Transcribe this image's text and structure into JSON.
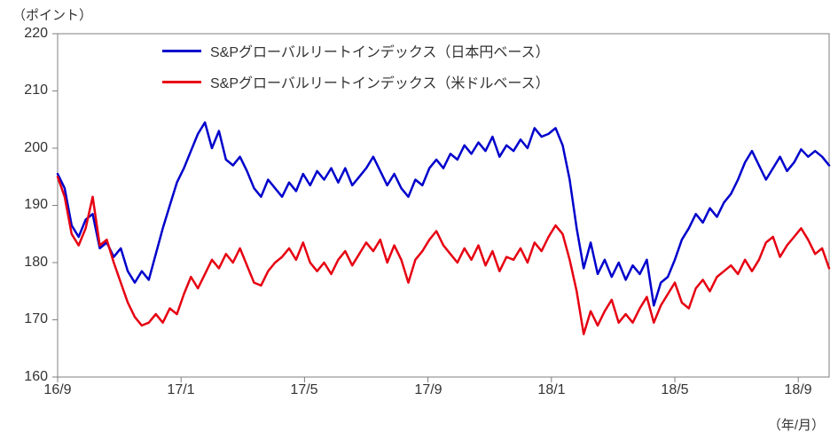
{
  "legend": [
    {
      "label": "S&Pグローバルリートインデックス（日本円ベース）",
      "color": "#0000cc"
    },
    {
      "label": "S&Pグローバルリートインデックス（米ドルベース）",
      "color": "#e60012"
    }
  ],
  "chart_data": {
    "type": "line",
    "title": "",
    "ylabel": "（ポイント）",
    "xlabel": "（年/月）",
    "ylim": [
      160,
      220
    ],
    "y_ticks": [
      220,
      210,
      200,
      190,
      180,
      170,
      160
    ],
    "x_ticks": [
      {
        "label": "16/9",
        "month": 0
      },
      {
        "label": "17/1",
        "month": 4
      },
      {
        "label": "17/5",
        "month": 8
      },
      {
        "label": "17/9",
        "month": 12
      },
      {
        "label": "18/1",
        "month": 16
      },
      {
        "label": "18/5",
        "month": 20
      },
      {
        "label": "18/9",
        "month": 24
      }
    ],
    "x_domain_months": [
      0,
      25
    ],
    "grid": false,
    "legend_position": "top-inside",
    "series": [
      {
        "name": "S&Pグローバルリートインデックス（日本円ベース）",
        "color": "#0000cc",
        "values": [
          195.5,
          193,
          186.5,
          184.5,
          187.5,
          188.5,
          182.5,
          183.5,
          181,
          182.5,
          178.5,
          176.5,
          178.5,
          177,
          181.5,
          186,
          190,
          194,
          196.5,
          199.5,
          202.5,
          204.5,
          200,
          203,
          198,
          197,
          198.5,
          196,
          193,
          191.5,
          194.5,
          193,
          191.5,
          194,
          192.5,
          195.5,
          193.5,
          196,
          194.5,
          196.5,
          194,
          196.5,
          193.5,
          195,
          196.5,
          198.5,
          196,
          193.5,
          195.5,
          193,
          191.5,
          194.5,
          193.5,
          196.5,
          198,
          196.5,
          199,
          198,
          200.5,
          199,
          201,
          199.5,
          202,
          198.5,
          200.5,
          199.5,
          201.5,
          200,
          203.5,
          202,
          202.5,
          203.5,
          200.5,
          194.5,
          186,
          179,
          183.5,
          178,
          180.5,
          177.5,
          180,
          177,
          179.5,
          178,
          180.5,
          172.5,
          176.5,
          177.5,
          180.5,
          184,
          186,
          188.5,
          187,
          189.5,
          188,
          190.5,
          192,
          194.5,
          197.5,
          199.5,
          197,
          194.5,
          196.5,
          198.5,
          196,
          197.5,
          199.8,
          198.5,
          199.5,
          198.5,
          197
        ]
      },
      {
        "name": "S&Pグローバルリートインデックス（米ドルベース）",
        "color": "#e60012",
        "values": [
          195,
          191.5,
          185,
          183,
          186,
          191.5,
          183,
          184,
          180,
          176.5,
          173,
          170.5,
          169,
          169.5,
          171,
          169.5,
          172,
          171,
          174.5,
          177.5,
          175.5,
          178,
          180.5,
          179,
          181.5,
          180,
          182.5,
          179.5,
          176.5,
          176,
          178.5,
          180,
          181,
          182.5,
          180.5,
          183.5,
          180,
          178.5,
          180,
          178,
          180.5,
          182,
          179.5,
          181.5,
          183.5,
          182,
          184,
          180,
          183,
          180.5,
          176.5,
          180.5,
          182,
          184,
          185.5,
          183,
          181.5,
          180,
          182.5,
          180.5,
          183,
          179.5,
          182,
          178.5,
          181,
          180.5,
          182.5,
          180,
          183.5,
          182,
          184.5,
          186.5,
          185,
          180.5,
          175,
          167.5,
          171.5,
          169,
          171.5,
          173.5,
          169.5,
          171,
          169.5,
          172,
          174,
          169.5,
          172.5,
          174.5,
          176.5,
          173,
          172,
          175.5,
          177,
          175,
          177.5,
          178.5,
          179.5,
          178,
          180.5,
          178.5,
          180.5,
          183.5,
          184.5,
          181,
          183,
          184.5,
          186,
          184,
          181.5,
          182.5,
          179
        ]
      }
    ]
  }
}
